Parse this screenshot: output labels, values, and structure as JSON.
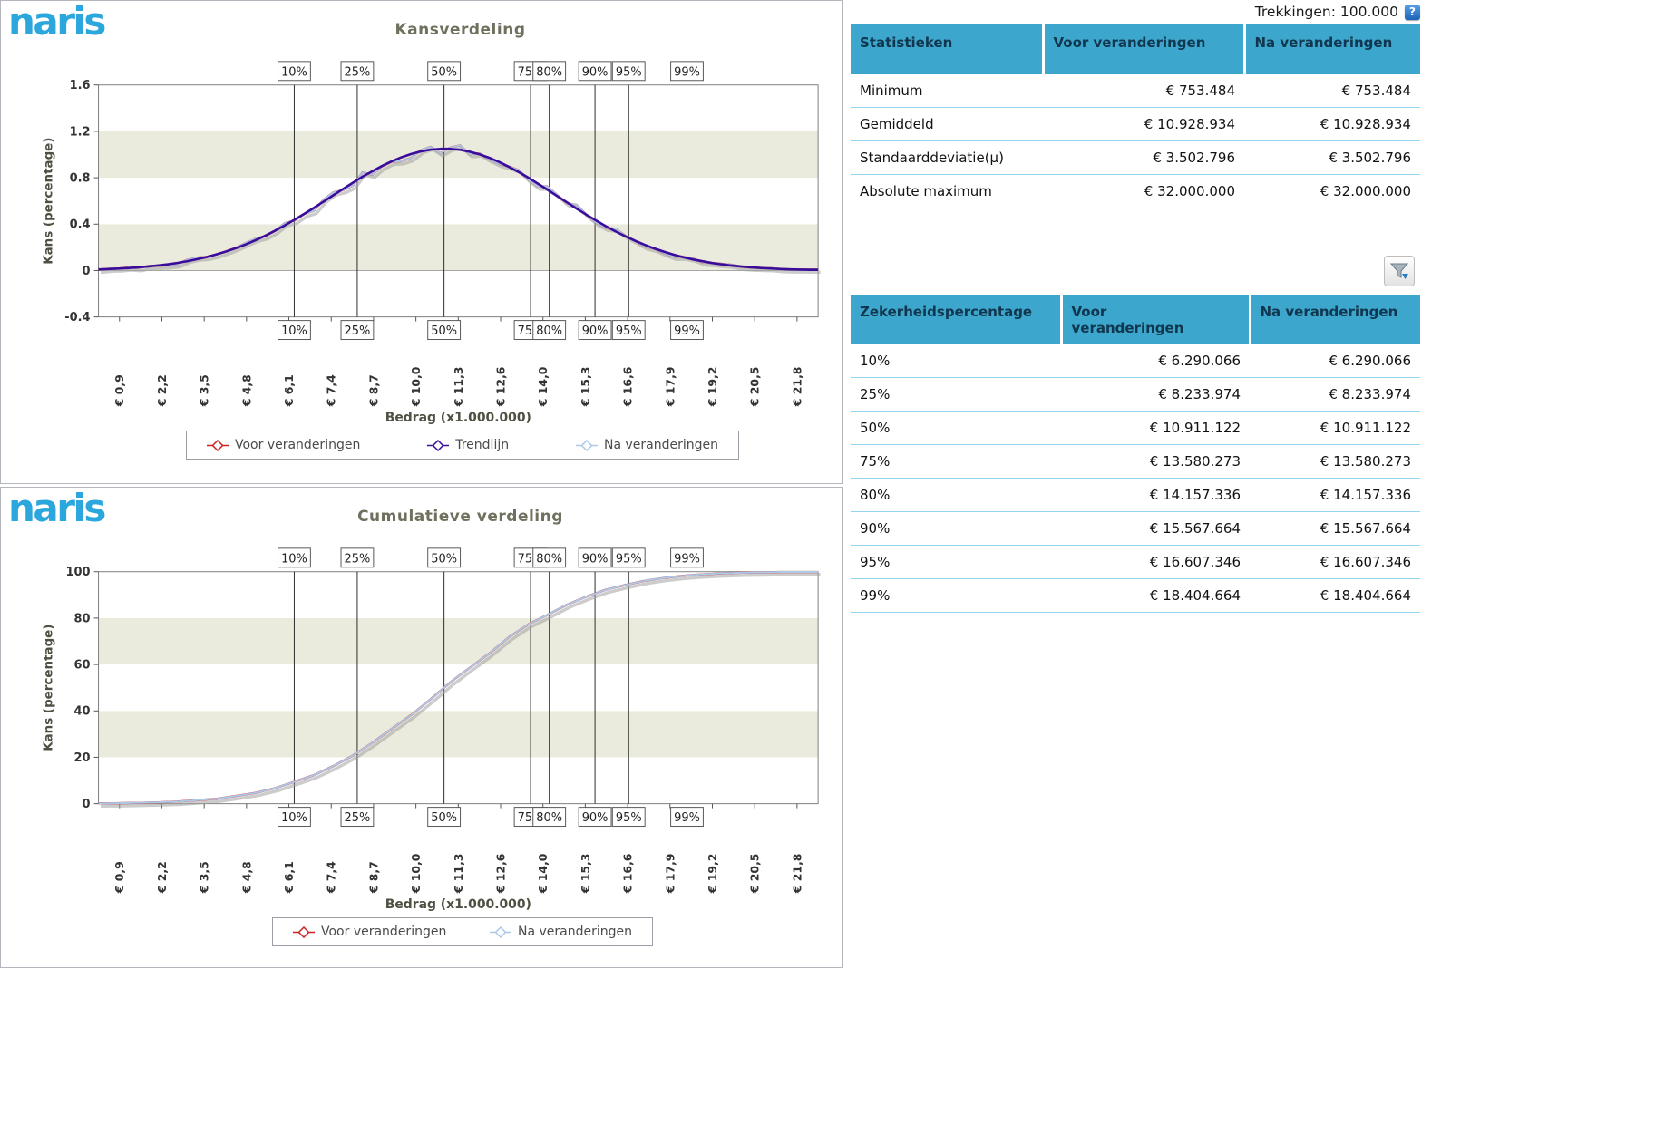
{
  "logo": {
    "text": "naris"
  },
  "header": {
    "trekkingen_label": "Trekkingen: 100.000",
    "help_icon": "?"
  },
  "colors": {
    "brand_blue": "#2ba7dd",
    "table_header_blue": "#3da6cc",
    "row_divider_blue": "#93d4ee",
    "series_voor": "#cc2222",
    "series_trend": "#3a0c9c",
    "series_na": "#abc9e8",
    "stripe_beige": "#ebebdd"
  },
  "stats_table": {
    "headers": [
      "Statistieken",
      "Voor veranderingen",
      "Na veranderingen"
    ],
    "rows": [
      {
        "label": "Minimum",
        "voor": "€ 753.484",
        "na": "€ 753.484"
      },
      {
        "label": "Gemiddeld",
        "voor": "€ 10.928.934",
        "na": "€ 10.928.934"
      },
      {
        "label": "Standaarddeviatie(µ)",
        "voor": "€ 3.502.796",
        "na": "€ 3.502.796"
      },
      {
        "label": "Absolute maximum",
        "voor": "€ 32.000.000",
        "na": "€ 32.000.000"
      }
    ]
  },
  "percentile_table": {
    "headers": [
      "Zekerheidspercentage",
      "Voor veranderingen",
      "Na veranderingen"
    ],
    "rows": [
      {
        "label": "10%",
        "voor": "€ 6.290.066",
        "na": "€ 6.290.066"
      },
      {
        "label": "25%",
        "voor": "€ 8.233.974",
        "na": "€ 8.233.974"
      },
      {
        "label": "50%",
        "voor": "€ 10.911.122",
        "na": "€ 10.911.122"
      },
      {
        "label": "75%",
        "voor": "€ 13.580.273",
        "na": "€ 13.580.273"
      },
      {
        "label": "80%",
        "voor": "€ 14.157.336",
        "na": "€ 14.157.336"
      },
      {
        "label": "90%",
        "voor": "€ 15.567.664",
        "na": "€ 15.567.664"
      },
      {
        "label": "95%",
        "voor": "€ 16.607.346",
        "na": "€ 16.607.346"
      },
      {
        "label": "99%",
        "voor": "€ 18.404.664",
        "na": "€ 18.404.664"
      }
    ]
  },
  "chart_data": [
    {
      "type": "line",
      "title": "Kansverdeling",
      "xlabel": "Bedrag (x1.000.000)",
      "ylabel": "Kans (percentage)",
      "xlim": [
        0.25,
        22.45
      ],
      "ylim": [
        -0.4,
        1.6
      ],
      "y_ticks": [
        -0.4,
        0,
        0.4,
        0.8,
        1.2,
        1.6
      ],
      "y_tick_labels": [
        "-0.4",
        "0",
        "0.4",
        "0.8",
        "1.2",
        "1.6"
      ],
      "x_ticks": [
        "€ 0,9",
        "€ 2,2",
        "€ 3,5",
        "€ 4,8",
        "€ 6,1",
        "€ 7,4",
        "€ 8,7",
        "€ 10,0",
        "€ 11,3",
        "€ 12,6",
        "€ 14,0",
        "€ 15,3",
        "€ 16,6",
        "€ 17,9",
        "€ 19,2",
        "€ 20,5",
        "€ 21,8"
      ],
      "x_tick_first": 0.9,
      "x_tick_last": 21.8,
      "percentiles": {
        "labels": [
          "10%",
          "25%",
          "50%",
          "75%",
          "80%",
          "90%",
          "95%",
          "99%"
        ],
        "values": [
          6.290066,
          8.233974,
          10.911122,
          13.580273,
          14.157336,
          15.567664,
          16.607346,
          18.404664
        ]
      },
      "noise_amplitude": 0.045,
      "noise_seed": 7,
      "noise_mode": "pdf",
      "series": [
        {
          "name": "Voor veranderingen",
          "color": "#cc2222",
          "role": "data"
        },
        {
          "name": "Trendlijn",
          "color": "#3a0c9c",
          "role": "trend",
          "x_start": 0.3,
          "x_step": 0.3,
          "y": [
            0.01,
            0.013,
            0.017,
            0.022,
            0.028,
            0.035,
            0.044,
            0.054,
            0.066,
            0.081,
            0.098,
            0.117,
            0.14,
            0.165,
            0.194,
            0.226,
            0.262,
            0.301,
            0.344,
            0.389,
            0.438,
            0.489,
            0.541,
            0.595,
            0.65,
            0.704,
            0.757,
            0.809,
            0.857,
            0.902,
            0.942,
            0.977,
            1.005,
            1.027,
            1.042,
            1.049,
            1.049,
            1.041,
            1.025,
            1.002,
            0.973,
            0.937,
            0.896,
            0.851,
            0.802,
            0.75,
            0.697,
            0.642,
            0.588,
            0.534,
            0.482,
            0.431,
            0.383,
            0.338,
            0.296,
            0.257,
            0.222,
            0.19,
            0.162,
            0.136,
            0.114,
            0.095,
            0.079,
            0.064,
            0.052,
            0.042,
            0.034,
            0.027,
            0.021,
            0.017,
            0.013,
            0.01,
            0.008,
            0.006
          ]
        },
        {
          "name": "Na veranderingen",
          "color": "#abc9e8",
          "role": "data"
        }
      ]
    },
    {
      "type": "line",
      "title": "Cumulatieve verdeling",
      "xlabel": "Bedrag (x1.000.000)",
      "ylabel": "Kans (percentage)",
      "xlim": [
        0.25,
        22.45
      ],
      "ylim": [
        0,
        100
      ],
      "y_ticks": [
        0,
        20,
        40,
        60,
        80,
        100
      ],
      "y_tick_labels": [
        "0",
        "20",
        "40",
        "60",
        "80",
        "100"
      ],
      "x_ticks": [
        "€ 0,9",
        "€ 2,2",
        "€ 3,5",
        "€ 4,8",
        "€ 6,1",
        "€ 7,4",
        "€ 8,7",
        "€ 10,0",
        "€ 11,3",
        "€ 12,6",
        "€ 14,0",
        "€ 15,3",
        "€ 16,6",
        "€ 17,9",
        "€ 19,2",
        "€ 20,5",
        "€ 21,8"
      ],
      "x_tick_first": 0.9,
      "x_tick_last": 21.8,
      "percentiles": {
        "labels": [
          "10%",
          "25%",
          "50%",
          "75%",
          "80%",
          "90%",
          "95%",
          "99%"
        ],
        "values": [
          6.290066,
          8.233974,
          10.911122,
          13.580273,
          14.157336,
          15.567664,
          16.607346,
          18.404664
        ]
      },
      "noise_amplitude": 0.8,
      "noise_seed": 11,
      "noise_mode": "cdf",
      "series": [
        {
          "name": "Voor veranderingen",
          "color": "#cc2222",
          "role": "data"
        },
        {
          "name": "Na veranderingen",
          "color": "#abc9e8",
          "role": "data",
          "x_start": 0.3,
          "x_step": 0.6,
          "y": [
            0.1,
            0.2,
            0.4,
            0.6,
            0.9,
            1.5,
            2.2,
            3.3,
            4.8,
            6.8,
            9.3,
            12.5,
            16.4,
            20.9,
            26.2,
            32.1,
            38.4,
            45.1,
            52.0,
            58.7,
            65.2,
            71.3,
            76.9,
            81.8,
            85.9,
            89.4,
            92.2,
            94.4,
            96.1,
            97.3,
            98.2,
            98.9,
            99.3,
            99.6,
            99.7,
            99.9,
            99.9
          ]
        }
      ]
    }
  ]
}
